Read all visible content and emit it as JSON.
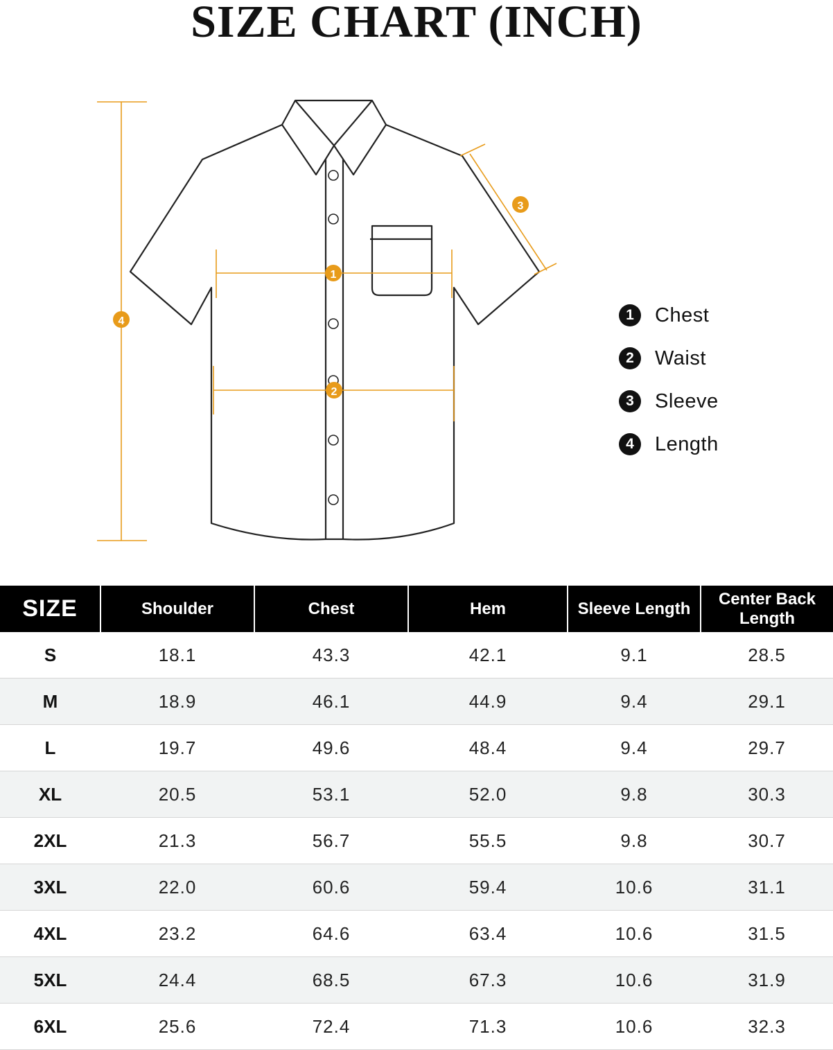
{
  "title": "SIZE CHART (INCH)",
  "diagram": {
    "markers": [
      "1",
      "2",
      "3",
      "4"
    ],
    "accent_color": "#e89b1a"
  },
  "legend": [
    {
      "num": "1",
      "label": "Chest"
    },
    {
      "num": "2",
      "label": "Waist"
    },
    {
      "num": "3",
      "label": "Sleeve"
    },
    {
      "num": "4",
      "label": "Length"
    }
  ],
  "table": {
    "headers": [
      "SIZE",
      "Shoulder",
      "Chest",
      "Hem",
      "Sleeve Length",
      "Center Back Length"
    ],
    "rows": [
      [
        "S",
        "18.1",
        "43.3",
        "42.1",
        "9.1",
        "28.5"
      ],
      [
        "M",
        "18.9",
        "46.1",
        "44.9",
        "9.4",
        "29.1"
      ],
      [
        "L",
        "19.7",
        "49.6",
        "48.4",
        "9.4",
        "29.7"
      ],
      [
        "XL",
        "20.5",
        "53.1",
        "52.0",
        "9.8",
        "30.3"
      ],
      [
        "2XL",
        "21.3",
        "56.7",
        "55.5",
        "9.8",
        "30.7"
      ],
      [
        "3XL",
        "22.0",
        "60.6",
        "59.4",
        "10.6",
        "31.1"
      ],
      [
        "4XL",
        "23.2",
        "64.6",
        "63.4",
        "10.6",
        "31.5"
      ],
      [
        "5XL",
        "24.4",
        "68.5",
        "67.3",
        "10.6",
        "31.9"
      ],
      [
        "6XL",
        "25.6",
        "72.4",
        "71.3",
        "10.6",
        "32.3"
      ]
    ]
  }
}
